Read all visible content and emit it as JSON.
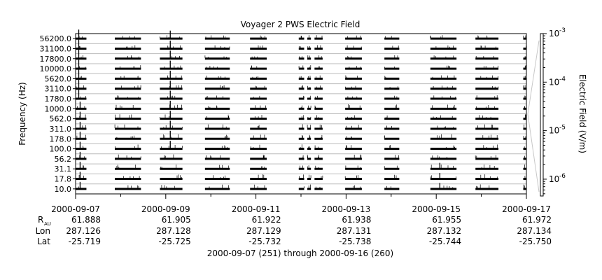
{
  "chart_data": {
    "type": "line",
    "title": "Voyager 2 PWS Electric Field",
    "ylabel": "Frequency (Hz)",
    "y2label": "Electric Field (V/m)",
    "xlabel": "2000-09-07 (251) through 2000-09-16 (260)",
    "channels": [
      "10.0",
      "17.8",
      "31.1",
      "56.2",
      "100.0",
      "178.0",
      "311.0",
      "562.0",
      "1000.0",
      "1780.0",
      "3110.0",
      "5620.0",
      "10000.0",
      "17800.0",
      "31100.0",
      "56200.0"
    ],
    "channels_note": "16 frequency channels; 10.0 is the bottom row, 56200.0 the top row",
    "x_range": [
      "2000-09-07",
      "2000-09-17"
    ],
    "x_ticks": [
      {
        "label": "2000-09-07",
        "r_au": "61.888",
        "lon": "287.126",
        "lat": "-25.719"
      },
      {
        "label": "2000-09-09",
        "r_au": "61.905",
        "lon": "287.128",
        "lat": "-25.725"
      },
      {
        "label": "2000-09-11",
        "r_au": "61.922",
        "lon": "287.129",
        "lat": "-25.732"
      },
      {
        "label": "2000-09-13",
        "r_au": "61.938",
        "lon": "287.131",
        "lat": "-25.738"
      },
      {
        "label": "2000-09-15",
        "r_au": "61.955",
        "lon": "287.132",
        "lat": "-25.744"
      },
      {
        "label": "2000-09-17",
        "r_au": "61.972",
        "lon": "287.134",
        "lat": "-25.750"
      }
    ],
    "ephemeris_labels": {
      "r": "R",
      "r_sub": "AU",
      "lon": "Lon",
      "lat": "Lat"
    },
    "data_intervals_days": [
      [
        0.0,
        0.24
      ],
      [
        0.87,
        1.45
      ],
      [
        1.87,
        2.37
      ],
      [
        2.87,
        3.42
      ],
      [
        3.87,
        4.24
      ],
      [
        4.95,
        5.07
      ],
      [
        5.14,
        5.22
      ],
      [
        5.3,
        5.48
      ],
      [
        5.98,
        6.35
      ],
      [
        6.85,
        7.18
      ],
      [
        7.87,
        8.45
      ],
      [
        8.87,
        9.38
      ],
      [
        9.93,
        10.0
      ]
    ],
    "spikes": [
      {
        "day": 0.07,
        "channels": [
          9,
          15
        ],
        "level": 0.9
      },
      {
        "day": 0.1,
        "channels": [
          0,
          8
        ],
        "level": 0.7
      },
      {
        "day": 2.1,
        "channels": [
          4,
          15
        ],
        "level": 0.8
      },
      {
        "day": 8.08,
        "channels": [
          0,
          2
        ],
        "level": 0.6
      }
    ],
    "y2_scale": "log",
    "y2_range": [
      4.5e-07,
      0.001
    ],
    "y2_ticks": [
      {
        "mant": "10",
        "exp": "-3",
        "value": 0.001
      },
      {
        "mant": "10",
        "exp": "-4",
        "value": 0.0001
      },
      {
        "mant": "10",
        "exp": "-5",
        "value": 1e-05
      },
      {
        "mant": "10",
        "exp": "-6",
        "value": 1e-06
      }
    ],
    "grid": true
  }
}
